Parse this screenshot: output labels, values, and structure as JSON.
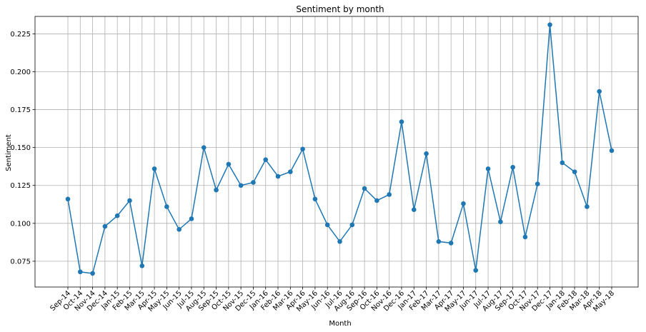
{
  "chart_data": {
    "type": "line",
    "title": "Sentiment by month",
    "xlabel": "Month",
    "ylabel": "Sentiment",
    "ylim": [
      0.058,
      0.2365
    ],
    "yticks": [
      0.075,
      0.1,
      0.125,
      0.15,
      0.175,
      0.2,
      0.225
    ],
    "ytick_labels": [
      "0.075",
      "0.100",
      "0.125",
      "0.150",
      "0.175",
      "0.200",
      "0.225"
    ],
    "grid": true,
    "color": "#1f77b4",
    "categories": [
      "Sep-14",
      "Oct-14",
      "Nov-14",
      "Dec-14",
      "Jan-15",
      "Feb-15",
      "Mar-15",
      "Apr-15",
      "May-15",
      "Jun-15",
      "Jul-15",
      "Aug-15",
      "Sep-15",
      "Oct-15",
      "Nov-15",
      "Dec-15",
      "Jan-16",
      "Feb-16",
      "Mar-16",
      "Apr-16",
      "May-16",
      "Jun-16",
      "Jul-16",
      "Aug-16",
      "Sep-16",
      "Oct-16",
      "Nov-16",
      "Dec-16",
      "Jan-17",
      "Feb-17",
      "Mar-17",
      "Apr-17",
      "May-17",
      "Jun-17",
      "Jul-17",
      "Aug-17",
      "Sep-17",
      "Oct-17",
      "Nov-17",
      "Dec-17",
      "Jan-18",
      "Feb-18",
      "Mar-18",
      "Apr-18",
      "May-18"
    ],
    "values": [
      0.116,
      0.068,
      0.067,
      0.098,
      0.105,
      0.115,
      0.072,
      0.136,
      0.111,
      0.096,
      0.103,
      0.15,
      0.122,
      0.139,
      0.125,
      0.127,
      0.142,
      0.131,
      0.134,
      0.149,
      0.116,
      0.099,
      0.088,
      0.099,
      0.123,
      0.115,
      0.119,
      0.167,
      0.109,
      0.146,
      0.088,
      0.087,
      0.113,
      0.069,
      0.136,
      0.101,
      0.137,
      0.091,
      0.126,
      0.231,
      0.14,
      0.134,
      0.111,
      0.187,
      0.148
    ]
  }
}
